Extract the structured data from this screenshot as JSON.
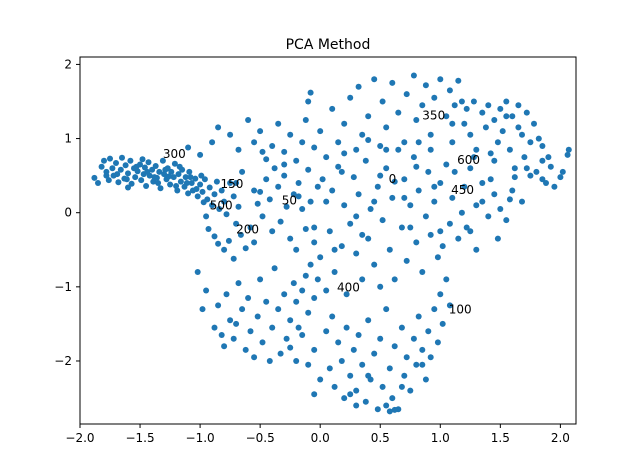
{
  "chart_data": {
    "type": "scatter",
    "title": "PCA Method",
    "xlabel": "",
    "ylabel": "",
    "xlim": [
      -2.0,
      2.13
    ],
    "ylim": [
      -2.85,
      2.1
    ],
    "xticks": [
      -2.0,
      -1.5,
      -1.0,
      -0.5,
      0.0,
      0.5,
      1.0,
      1.5,
      2.0
    ],
    "xtick_labels": [
      "−2.0",
      "−1.5",
      "−1.0",
      "−0.5",
      "0.0",
      "0.5",
      "1.0",
      "1.5",
      "2.0"
    ],
    "yticks": [
      -2,
      -1,
      0,
      1,
      2
    ],
    "ytick_labels": [
      "−2",
      "−1",
      "0",
      "1",
      "2"
    ],
    "grid": false,
    "point_color": "#1f77b4",
    "annotations": [
      {
        "text": "0",
        "x": 0.57,
        "y": 0.4
      },
      {
        "text": "50",
        "x": -0.32,
        "y": 0.11
      },
      {
        "text": "100",
        "x": 1.07,
        "y": -1.36
      },
      {
        "text": "150",
        "x": -0.83,
        "y": 0.33
      },
      {
        "text": "200",
        "x": -0.7,
        "y": -0.28
      },
      {
        "text": "300",
        "x": -1.31,
        "y": 0.74
      },
      {
        "text": "350",
        "x": 0.85,
        "y": 1.26
      },
      {
        "text": "400",
        "x": 0.14,
        "y": -1.06
      },
      {
        "text": "450",
        "x": 1.09,
        "y": 0.25
      },
      {
        "text": "500",
        "x": -0.92,
        "y": 0.04
      },
      {
        "text": "600",
        "x": 1.14,
        "y": 0.66
      }
    ],
    "points": [
      [
        -1.88,
        0.47
      ],
      [
        -1.85,
        0.4
      ],
      [
        -1.82,
        0.62
      ],
      [
        -1.8,
        0.7
      ],
      [
        -1.78,
        0.55
      ],
      [
        -1.76,
        0.44
      ],
      [
        -1.75,
        0.73
      ],
      [
        -1.73,
        0.6
      ],
      [
        -1.72,
        0.5
      ],
      [
        -1.7,
        0.67
      ],
      [
        -1.68,
        0.41
      ],
      [
        -1.66,
        0.58
      ],
      [
        -1.65,
        0.74
      ],
      [
        -1.63,
        0.46
      ],
      [
        -1.62,
        0.64
      ],
      [
        -1.6,
        0.53
      ],
      [
        -1.58,
        0.7
      ],
      [
        -1.57,
        0.39
      ],
      [
        -1.55,
        0.6
      ],
      [
        -1.54,
        0.48
      ],
      [
        -1.52,
        0.56
      ],
      [
        -1.5,
        0.65
      ],
      [
        -1.49,
        0.44
      ],
      [
        -1.47,
        0.52
      ],
      [
        -1.46,
        0.61
      ],
      [
        -1.45,
        0.36
      ],
      [
        -1.43,
        0.68
      ],
      [
        -1.42,
        0.5
      ],
      [
        -1.4,
        0.58
      ],
      [
        -1.39,
        0.42
      ],
      [
        -1.37,
        0.63
      ],
      [
        -1.36,
        0.47
      ],
      [
        -1.34,
        0.55
      ],
      [
        -1.33,
        0.33
      ],
      [
        -1.31,
        0.7
      ],
      [
        -1.3,
        0.52
      ],
      [
        -1.28,
        0.45
      ],
      [
        -1.27,
        0.6
      ],
      [
        -1.25,
        0.38
      ],
      [
        -1.24,
        0.55
      ],
      [
        -1.22,
        0.48
      ],
      [
        -1.21,
        0.66
      ],
      [
        -1.19,
        0.3
      ],
      [
        -1.18,
        0.52
      ],
      [
        -1.16,
        0.42
      ],
      [
        -1.15,
        0.58
      ],
      [
        -1.13,
        0.35
      ],
      [
        -1.12,
        0.48
      ],
      [
        -1.1,
        0.26
      ],
      [
        -1.09,
        0.55
      ],
      [
        -1.07,
        0.4
      ],
      [
        -1.06,
        0.3
      ],
      [
        -1.04,
        0.46
      ],
      [
        -1.02,
        0.22
      ],
      [
        -1.0,
        0.38
      ],
      [
        -0.98,
        0.28
      ],
      [
        -0.96,
        0.45
      ],
      [
        -0.94,
        0.18
      ],
      [
        -0.92,
        0.34
      ],
      [
        -0.9,
        0.1
      ],
      [
        -0.88,
        0.25
      ],
      [
        -0.86,
        0.42
      ],
      [
        -0.84,
        0.05
      ],
      [
        -0.82,
        0.3
      ],
      [
        -0.8,
        0.15
      ],
      [
        -0.78,
        -0.02
      ],
      [
        -0.75,
        0.4
      ],
      [
        -0.72,
        0.22
      ],
      [
        -0.7,
        -0.15
      ],
      [
        -0.68,
        0.08
      ],
      [
        -1.78,
        0.5
      ],
      [
        -1.69,
        0.52
      ],
      [
        -1.61,
        0.45
      ],
      [
        -1.53,
        0.62
      ],
      [
        -1.44,
        0.55
      ],
      [
        -1.38,
        0.48
      ],
      [
        -1.29,
        0.58
      ],
      [
        -1.2,
        0.36
      ],
      [
        -1.11,
        0.4
      ],
      [
        -1.03,
        0.32
      ],
      [
        -1.6,
        0.34
      ],
      [
        -1.48,
        0.72
      ],
      [
        -1.35,
        0.4
      ],
      [
        -1.26,
        0.49
      ],
      [
        -1.17,
        0.62
      ],
      [
        -1.08,
        0.48
      ],
      [
        -0.99,
        0.5
      ],
      [
        -0.97,
        0.14
      ],
      [
        -0.95,
        -0.05
      ],
      [
        -0.93,
        -0.22
      ],
      [
        -0.88,
        -0.32
      ],
      [
        -0.85,
        -0.42
      ],
      [
        -0.8,
        -0.5
      ],
      [
        -0.76,
        -0.38
      ],
      [
        -0.72,
        -0.62
      ],
      [
        -0.66,
        -0.3
      ],
      [
        -0.62,
        -0.48
      ],
      [
        -0.58,
        -0.2
      ],
      [
        -0.55,
        -0.4
      ],
      [
        -0.52,
        0.12
      ],
      [
        -0.5,
        0.28
      ],
      [
        -0.48,
        -0.05
      ],
      [
        -0.45,
        0.45
      ],
      [
        -0.42,
        0.18
      ],
      [
        -0.4,
        -0.25
      ],
      [
        -0.38,
        0.6
      ],
      [
        -0.35,
        0.35
      ],
      [
        -0.33,
        -0.12
      ],
      [
        -0.3,
        0.5
      ],
      [
        -0.28,
        0.08
      ],
      [
        -0.25,
        -0.35
      ],
      [
        -0.22,
        0.25
      ],
      [
        -0.2,
        -0.5
      ],
      [
        -0.18,
        0.4
      ],
      [
        -0.15,
        0.05
      ],
      [
        -0.12,
        -0.22
      ],
      [
        -0.1,
        0.58
      ],
      [
        -0.08,
        0.15
      ],
      [
        -0.05,
        -0.4
      ],
      [
        -0.02,
        0.35
      ],
      [
        -1.1,
        0.88
      ],
      [
        -1.0,
        0.78
      ],
      [
        -0.9,
        0.95
      ],
      [
        -0.85,
        1.15
      ],
      [
        -0.75,
        1.05
      ],
      [
        -0.68,
        0.85
      ],
      [
        -0.6,
        1.25
      ],
      [
        -0.55,
        0.95
      ],
      [
        -0.5,
        1.1
      ],
      [
        -0.45,
        0.72
      ],
      [
        -0.4,
        0.9
      ],
      [
        -0.35,
        1.2
      ],
      [
        -0.3,
        0.82
      ],
      [
        -0.25,
        1.05
      ],
      [
        -0.2,
        0.7
      ],
      [
        -0.15,
        0.95
      ],
      [
        -0.12,
        1.25
      ],
      [
        -0.1,
        1.5
      ],
      [
        -0.08,
        1.62
      ],
      [
        -0.05,
        0.88
      ],
      [
        0.0,
        1.1
      ],
      [
        0.05,
        0.75
      ],
      [
        0.1,
        1.4
      ],
      [
        0.15,
        0.95
      ],
      [
        0.2,
        1.2
      ],
      [
        0.25,
        1.55
      ],
      [
        0.3,
        0.85
      ],
      [
        0.32,
        1.7
      ],
      [
        0.35,
        1.05
      ],
      [
        0.4,
        1.3
      ],
      [
        0.45,
        1.8
      ],
      [
        0.5,
        0.9
      ],
      [
        0.52,
        1.5
      ],
      [
        0.55,
        1.15
      ],
      [
        0.6,
        1.75
      ],
      [
        0.65,
        1.35
      ],
      [
        0.7,
        0.95
      ],
      [
        0.72,
        1.6
      ],
      [
        0.78,
        1.85
      ],
      [
        0.8,
        1.25
      ],
      [
        0.85,
        1.45
      ],
      [
        0.88,
        1.72
      ],
      [
        0.92,
        1.05
      ],
      [
        0.95,
        1.55
      ],
      [
        1.0,
        1.8
      ],
      [
        1.05,
        1.3
      ],
      [
        1.08,
        1.65
      ],
      [
        1.1,
        0.95
      ],
      [
        1.12,
        1.45
      ],
      [
        1.15,
        1.78
      ],
      [
        1.18,
        1.5
      ],
      [
        1.2,
        1.2
      ],
      [
        1.22,
        1.4
      ],
      [
        1.25,
        1.05
      ],
      [
        1.28,
        1.5
      ],
      [
        1.3,
        0.85
      ],
      [
        1.35,
        1.35
      ],
      [
        1.38,
        1.15
      ],
      [
        1.4,
        1.45
      ],
      [
        1.42,
        0.8
      ],
      [
        1.45,
        1.25
      ],
      [
        1.48,
        0.95
      ],
      [
        1.5,
        1.4
      ],
      [
        1.52,
        1.1
      ],
      [
        1.55,
        1.5
      ],
      [
        1.58,
        0.85
      ],
      [
        1.6,
        1.3
      ],
      [
        1.62,
        0.6
      ],
      [
        1.65,
        1.45
      ],
      [
        1.68,
        1.05
      ],
      [
        1.7,
        0.75
      ],
      [
        1.72,
        1.35
      ],
      [
        1.75,
        0.95
      ],
      [
        1.78,
        1.2
      ],
      [
        1.8,
        0.55
      ],
      [
        1.82,
        1.0
      ],
      [
        1.85,
        0.7
      ],
      [
        1.88,
        0.4
      ],
      [
        1.92,
        0.62
      ],
      [
        1.95,
        0.35
      ],
      [
        2.0,
        0.48
      ],
      [
        2.06,
        0.78
      ],
      [
        2.07,
        0.85
      ],
      [
        2.02,
        0.55
      ],
      [
        1.9,
        0.75
      ],
      [
        1.85,
        0.45
      ],
      [
        1.75,
        0.5
      ],
      [
        1.68,
        0.15
      ],
      [
        1.6,
        0.3
      ],
      [
        1.55,
        -0.1
      ],
      [
        1.5,
        0.05
      ],
      [
        1.45,
        0.25
      ],
      [
        1.4,
        -0.05
      ],
      [
        1.35,
        0.4
      ],
      [
        1.3,
        0.1
      ],
      [
        1.25,
        -0.25
      ],
      [
        1.2,
        0.35
      ],
      [
        1.18,
        0.0
      ],
      [
        1.15,
        -0.35
      ],
      [
        1.12,
        0.55
      ],
      [
        1.1,
        0.2
      ],
      [
        1.08,
        -0.15
      ],
      [
        1.05,
        0.65
      ],
      [
        1.02,
        -0.45
      ],
      [
        1.0,
        0.4
      ],
      [
        0.98,
        -0.6
      ],
      [
        0.95,
        0.15
      ],
      [
        0.92,
        -0.3
      ],
      [
        0.9,
        0.55
      ],
      [
        0.88,
        -0.05
      ],
      [
        0.85,
        -0.8
      ],
      [
        0.82,
        0.3
      ],
      [
        0.8,
        -0.4
      ],
      [
        0.78,
        0.75
      ],
      [
        0.75,
        0.1
      ],
      [
        0.72,
        -0.65
      ],
      [
        0.7,
        0.45
      ],
      [
        0.68,
        -0.2
      ],
      [
        0.65,
        0.85
      ],
      [
        0.62,
        -0.9
      ],
      [
        0.6,
        0.2
      ],
      [
        0.58,
        -0.5
      ],
      [
        0.55,
        0.6
      ],
      [
        0.52,
        -0.1
      ],
      [
        0.5,
        -1.0
      ],
      [
        0.48,
        0.35
      ],
      [
        0.45,
        -0.7
      ],
      [
        0.42,
        0.05
      ],
      [
        0.4,
        -0.35
      ],
      [
        0.38,
        0.7
      ],
      [
        0.35,
        -0.9
      ],
      [
        0.32,
        0.25
      ],
      [
        0.3,
        -0.55
      ],
      [
        0.28,
        0.48
      ],
      [
        0.25,
        -0.15
      ],
      [
        0.22,
        -1.1
      ],
      [
        0.2,
        0.1
      ],
      [
        0.18,
        -0.45
      ],
      [
        0.15,
        0.62
      ],
      [
        0.12,
        -0.8
      ],
      [
        0.1,
        0.3
      ],
      [
        0.08,
        -0.25
      ],
      [
        0.05,
        -1.05
      ],
      [
        0.02,
        0.45
      ],
      [
        0.0,
        -0.6
      ],
      [
        -0.02,
        -0.9
      ],
      [
        -0.05,
        -1.15
      ],
      [
        -0.08,
        -0.7
      ],
      [
        -0.1,
        -1.35
      ],
      [
        -0.12,
        -0.85
      ],
      [
        -0.15,
        -1.05
      ],
      [
        -0.18,
        -1.55
      ],
      [
        -0.2,
        -1.2
      ],
      [
        -0.22,
        -0.95
      ],
      [
        -0.25,
        -1.45
      ],
      [
        -0.28,
        -1.7
      ],
      [
        -0.3,
        -1.1
      ],
      [
        -0.33,
        -1.9
      ],
      [
        -0.35,
        -1.3
      ],
      [
        -0.38,
        -0.75
      ],
      [
        -0.4,
        -1.55
      ],
      [
        -0.42,
        -2.0
      ],
      [
        -0.45,
        -1.2
      ],
      [
        -0.48,
        -1.75
      ],
      [
        -0.5,
        -0.9
      ],
      [
        -0.52,
        -1.4
      ],
      [
        -0.55,
        -1.95
      ],
      [
        -0.58,
        -1.6
      ],
      [
        -0.6,
        -1.15
      ],
      [
        -0.62,
        -1.85
      ],
      [
        -0.65,
        -1.3
      ],
      [
        -0.68,
        -0.95
      ],
      [
        -0.7,
        -1.5
      ],
      [
        -0.72,
        -1.7
      ],
      [
        -0.75,
        -1.45
      ],
      [
        -0.78,
        -1.1
      ],
      [
        -0.8,
        -1.8
      ],
      [
        -0.82,
        -1.65
      ],
      [
        -0.85,
        -1.25
      ],
      [
        -0.95,
        -1.05
      ],
      [
        -1.02,
        -0.8
      ],
      [
        -0.98,
        -1.3
      ],
      [
        -0.88,
        -1.55
      ],
      [
        -0.2,
        -2.0
      ],
      [
        -0.15,
        -1.65
      ],
      [
        -0.1,
        -2.05
      ],
      [
        -0.05,
        -1.85
      ],
      [
        0.0,
        -2.25
      ],
      [
        0.05,
        -1.6
      ],
      [
        0.08,
        -2.1
      ],
      [
        0.1,
        -1.4
      ],
      [
        0.12,
        -2.35
      ],
      [
        0.15,
        -1.75
      ],
      [
        0.18,
        -2.0
      ],
      [
        0.2,
        -2.5
      ],
      [
        0.22,
        -1.55
      ],
      [
        0.25,
        -2.2
      ],
      [
        0.28,
        -1.85
      ],
      [
        0.3,
        -2.4
      ],
      [
        0.32,
        -1.65
      ],
      [
        0.35,
        -2.05
      ],
      [
        0.38,
        -2.55
      ],
      [
        0.4,
        -1.45
      ],
      [
        0.42,
        -2.25
      ],
      [
        0.45,
        -1.9
      ],
      [
        0.48,
        -2.65
      ],
      [
        0.5,
        -1.7
      ],
      [
        0.52,
        -2.35
      ],
      [
        0.55,
        -1.3
      ],
      [
        0.58,
        -2.1
      ],
      [
        0.6,
        -2.5
      ],
      [
        0.62,
        -1.8
      ],
      [
        0.65,
        -2.65
      ],
      [
        0.68,
        -1.55
      ],
      [
        0.7,
        -2.2
      ],
      [
        0.72,
        -1.95
      ],
      [
        0.75,
        -2.4
      ],
      [
        0.78,
        -1.7
      ],
      [
        0.8,
        -2.05
      ],
      [
        0.82,
        -1.4
      ],
      [
        0.85,
        -1.85
      ],
      [
        0.88,
        -2.25
      ],
      [
        0.9,
        -1.6
      ],
      [
        0.92,
        -1.95
      ],
      [
        0.95,
        -1.3
      ],
      [
        0.98,
        -1.75
      ],
      [
        1.0,
        -1.1
      ],
      [
        1.02,
        -1.5
      ],
      [
        1.05,
        -0.9
      ],
      [
        1.08,
        -1.25
      ],
      [
        0.55,
        -2.6
      ],
      [
        0.58,
        -2.68
      ],
      [
        0.62,
        -2.66
      ],
      [
        0.3,
        -2.6
      ],
      [
        0.25,
        -2.45
      ],
      [
        -0.05,
        -2.45
      ],
      [
        0.68,
        -2.35
      ],
      [
        0.4,
        -2.2
      ],
      [
        0.85,
        -2.05
      ],
      [
        -0.25,
        -1.82
      ],
      [
        0.4,
        0.98
      ],
      [
        0.18,
        0.55
      ],
      [
        -0.18,
        0.22
      ],
      [
        0.3,
        -0.05
      ],
      [
        0.62,
        0.42
      ],
      [
        0.8,
        0.62
      ],
      [
        0.7,
        0.2
      ],
      [
        0.5,
        0.5
      ],
      [
        0.45,
        0.15
      ],
      [
        0.95,
        0.35
      ],
      [
        0.92,
        0.85
      ],
      [
        1.25,
        0.6
      ],
      [
        1.42,
        0.45
      ],
      [
        1.35,
        0.15
      ],
      [
        1.48,
        -0.35
      ],
      [
        1.3,
        -0.5
      ],
      [
        1.22,
        -0.2
      ],
      [
        1.0,
        -0.25
      ],
      [
        0.75,
        -0.2
      ],
      [
        0.35,
        -0.3
      ],
      [
        0.12,
        -0.5
      ],
      [
        -0.05,
        -0.2
      ],
      [
        0.05,
        0.15
      ],
      [
        -0.3,
        0.65
      ],
      [
        -0.48,
        0.82
      ],
      [
        -0.65,
        0.55
      ],
      [
        -0.7,
        0.4
      ],
      [
        -0.55,
        0.3
      ],
      [
        0.2,
        0.8
      ],
      [
        0.55,
        0.85
      ],
      [
        0.82,
        0.95
      ],
      [
        1.1,
        1.2
      ],
      [
        1.28,
        0.75
      ],
      [
        1.62,
        0.48
      ],
      [
        1.72,
        0.6
      ],
      [
        1.58,
        0.18
      ],
      [
        1.45,
        0.7
      ],
      [
        1.85,
        0.9
      ],
      [
        1.65,
        1.15
      ],
      [
        1.55,
        1.3
      ]
    ]
  }
}
